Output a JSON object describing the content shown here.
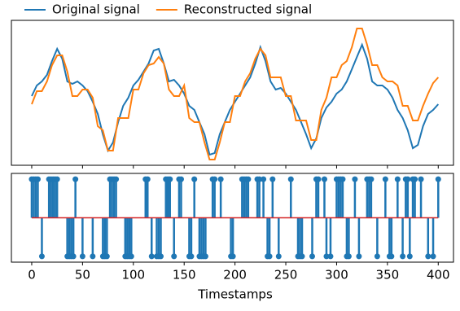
{
  "chart_data": [
    {
      "type": "line",
      "x": [
        0,
        5,
        10,
        15,
        20,
        25,
        30,
        35,
        40,
        45,
        50,
        55,
        60,
        65,
        70,
        75,
        80,
        85,
        90,
        95,
        100,
        105,
        110,
        115,
        120,
        125,
        130,
        135,
        140,
        145,
        150,
        155,
        160,
        165,
        170,
        175,
        180,
        185,
        190,
        195,
        200,
        205,
        210,
        215,
        220,
        225,
        230,
        235,
        240,
        245,
        250,
        255,
        260,
        265,
        270,
        275,
        280,
        285,
        290,
        295,
        300,
        305,
        310,
        315,
        320,
        325,
        330,
        335,
        340,
        345,
        350,
        355,
        360,
        365,
        370,
        375,
        380,
        385,
        390,
        395,
        400
      ],
      "series": [
        {
          "name": "Original signal",
          "color": "#1f77b4",
          "values": [
            82,
            95,
            100,
            108,
            125,
            140,
            128,
            100,
            97,
            100,
            95,
            88,
            75,
            60,
            35,
            15,
            25,
            50,
            70,
            80,
            95,
            102,
            112,
            122,
            138,
            140,
            122,
            100,
            102,
            95,
            85,
            70,
            65,
            50,
            35,
            10,
            12,
            35,
            50,
            65,
            75,
            85,
            95,
            105,
            122,
            142,
            125,
            100,
            90,
            92,
            85,
            75,
            65,
            50,
            35,
            18,
            30,
            55,
            68,
            75,
            85,
            90,
            100,
            115,
            130,
            145,
            128,
            100,
            95,
            95,
            90,
            80,
            65,
            55,
            40,
            18,
            22,
            45,
            60,
            65,
            72
          ]
        },
        {
          "name": "Reconstructed signal",
          "color": "#ff7f0e",
          "values": [
            72,
            88,
            88,
            100,
            120,
            132,
            132,
            112,
            82,
            82,
            90,
            90,
            80,
            45,
            40,
            15,
            15,
            55,
            55,
            55,
            90,
            90,
            110,
            120,
            122,
            130,
            122,
            90,
            82,
            82,
            95,
            55,
            50,
            50,
            25,
            4,
            4,
            25,
            50,
            50,
            82,
            82,
            100,
            110,
            128,
            140,
            132,
            105,
            105,
            105,
            82,
            82,
            52,
            52,
            52,
            28,
            28,
            65,
            80,
            105,
            105,
            120,
            125,
            142,
            165,
            165,
            145,
            120,
            120,
            105,
            100,
            100,
            95,
            70,
            70,
            52,
            52,
            70,
            85,
            98,
            105
          ]
        }
      ],
      "xlim": [
        -20,
        415
      ],
      "ylim": [
        -3,
        175
      ],
      "legend": "top"
    },
    {
      "type": "stem",
      "x": [
        0,
        2,
        4,
        6,
        10,
        17,
        19,
        21,
        23,
        25,
        35,
        37,
        39,
        41,
        43,
        50,
        60,
        70,
        72,
        74,
        77,
        79,
        81,
        83,
        92,
        94,
        96,
        98,
        112,
        114,
        118,
        123,
        125,
        127,
        132,
        134,
        136,
        140,
        145,
        147,
        155,
        157,
        160,
        165,
        167,
        169,
        171,
        178,
        180,
        186,
        196,
        198,
        207,
        209,
        211,
        213,
        222,
        224,
        228,
        232,
        234,
        237,
        243,
        255,
        262,
        264,
        266,
        276,
        280,
        282,
        288,
        290,
        294,
        300,
        302,
        304,
        306,
        310,
        312,
        318,
        322,
        330,
        332,
        334,
        340,
        348,
        352,
        354,
        360,
        365,
        368,
        370,
        372,
        375,
        377,
        383,
        390,
        395,
        400
      ],
      "values": [
        1,
        1,
        1,
        1,
        -1,
        1,
        1,
        1,
        1,
        1,
        -1,
        -1,
        -1,
        -1,
        1,
        -1,
        -1,
        -1,
        -1,
        -1,
        1,
        1,
        1,
        1,
        -1,
        -1,
        -1,
        -1,
        1,
        1,
        -1,
        -1,
        -1,
        -1,
        1,
        1,
        1,
        -1,
        1,
        1,
        -1,
        -1,
        1,
        -1,
        -1,
        -1,
        -1,
        1,
        1,
        1,
        -1,
        -1,
        1,
        1,
        1,
        1,
        1,
        1,
        1,
        -1,
        -1,
        1,
        -1,
        1,
        -1,
        -1,
        -1,
        -1,
        1,
        1,
        1,
        -1,
        -1,
        1,
        1,
        1,
        1,
        -1,
        -1,
        1,
        -1,
        1,
        1,
        1,
        -1,
        1,
        -1,
        -1,
        1,
        -1,
        1,
        1,
        -1,
        1,
        1,
        1,
        -1,
        -1,
        1
      ],
      "color": "#1f77b4",
      "baseline_color": "#d62728",
      "xlim": [
        -20,
        415
      ],
      "ylim": [
        -1.15,
        1.15
      ],
      "xticks": [
        0,
        50,
        100,
        150,
        200,
        250,
        300,
        350,
        400
      ],
      "xlabel": "Timestamps"
    }
  ]
}
